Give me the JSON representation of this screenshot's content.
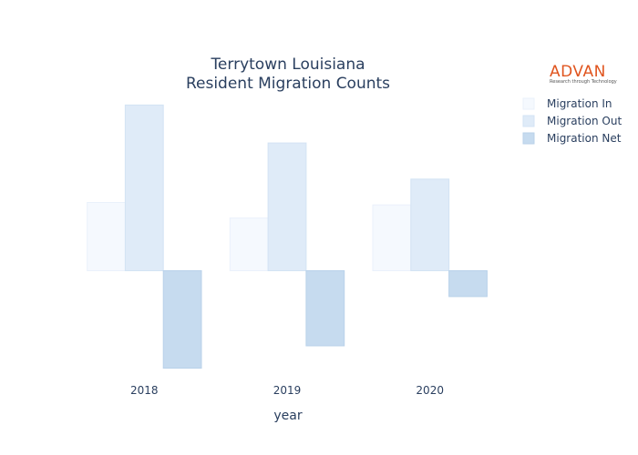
{
  "logo": {
    "text": "ADVAN",
    "tagline": "Research through Technology",
    "color": "#e0551f"
  },
  "chart_data": {
    "type": "bar",
    "title": [
      "Terrytown Louisiana",
      "Resident Migration Counts"
    ],
    "xlabel": "year",
    "ylabel": "",
    "categories": [
      "2018",
      "2019",
      "2020"
    ],
    "series": [
      {
        "name": "Migration In",
        "values": [
          140,
          108,
          135
        ],
        "color": "#f5f9fe",
        "stroke": "#eaf1fb"
      },
      {
        "name": "Migration Out",
        "values": [
          340,
          262,
          188
        ],
        "color": "#dfebf8",
        "stroke": "#d3e3f4"
      },
      {
        "name": "Migration Net",
        "values": [
          -200,
          -154,
          -53
        ],
        "color": "#c6dbef",
        "stroke": "#b9d2ea"
      }
    ],
    "ylim": [
      -210,
      350
    ],
    "grid": false,
    "legend": "top-right"
  }
}
